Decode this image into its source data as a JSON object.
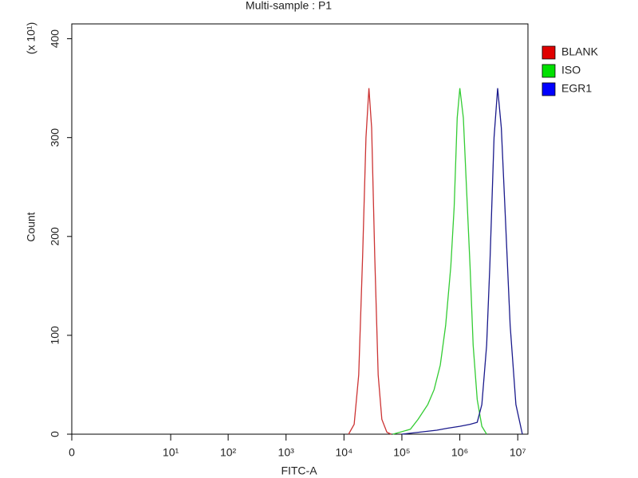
{
  "chart_data": {
    "type": "histogram-overlay",
    "title": "Multi-sample : P1",
    "x_label": "FITC-A",
    "y_label": "Count",
    "y_multiplier_label": "(x 10¹)",
    "xscale": "biexponential",
    "xlim": [
      0,
      15000000
    ],
    "xticks": [
      0,
      {
        "value": 10,
        "label": "10¹"
      },
      {
        "value": 100,
        "label": "10²"
      },
      {
        "value": 1000,
        "label": "10³"
      },
      {
        "value": 10000,
        "label": "10⁴"
      },
      {
        "value": 100000,
        "label": "10⁵"
      },
      {
        "value": 1000000,
        "label": "10⁶"
      },
      {
        "value": 10000000,
        "label": "10⁷"
      }
    ],
    "ylim": [
      0,
      415
    ],
    "yticks": [
      0,
      100,
      200,
      300,
      400
    ],
    "legend": "right",
    "series": [
      {
        "name": "BLANK",
        "color": "#cc3333",
        "legend_color": "#e00000",
        "x": [
          12000,
          15000,
          18000,
          21000,
          24000,
          27000,
          30000,
          34000,
          39000,
          45000,
          55000,
          65000
        ],
        "values": [
          0,
          10,
          60,
          180,
          300,
          350,
          310,
          180,
          60,
          15,
          2,
          0
        ]
      },
      {
        "name": "ISO",
        "color": "#33cc33",
        "legend_color": "#00e000",
        "x": [
          70000,
          140000,
          190000,
          280000,
          360000,
          460000,
          570000,
          700000,
          800000,
          900000,
          1000000,
          1150000,
          1300000,
          1500000,
          1700000,
          2000000,
          2400000,
          2900000
        ],
        "values": [
          0,
          5,
          15,
          30,
          45,
          70,
          110,
          170,
          230,
          320,
          350,
          320,
          250,
          170,
          90,
          35,
          8,
          0
        ]
      },
      {
        "name": "EGR1",
        "color": "#1a1a8c",
        "legend_color": "#0000ff",
        "x": [
          100000,
          200000,
          400000,
          600000,
          1000000,
          1500000,
          2000000,
          2400000,
          2900000,
          3300000,
          3900000,
          4500000,
          5200000,
          6000000,
          7400000,
          9300000,
          12000000
        ],
        "values": [
          0,
          2,
          4,
          6,
          8,
          10,
          12,
          30,
          90,
          170,
          300,
          350,
          310,
          230,
          110,
          30,
          0
        ]
      }
    ]
  }
}
